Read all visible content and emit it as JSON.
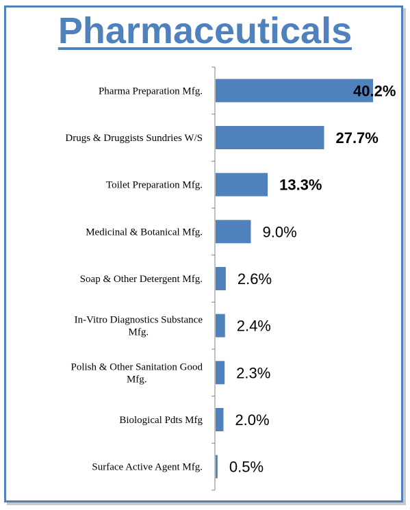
{
  "chart_data": {
    "type": "bar",
    "orientation": "horizontal",
    "title": "Pharmaceuticals",
    "categories": [
      [
        "Pharma Preparation Mfg."
      ],
      [
        "Drugs & Druggists Sundries W/S"
      ],
      [
        "Toilet Preparation Mfg."
      ],
      [
        "Medicinal & Botanical Mfg."
      ],
      [
        "Soap & Other Detergent Mfg."
      ],
      [
        "In-Vitro Diagnostics Substance",
        "Mfg."
      ],
      [
        "Polish & Other Sanitation Good",
        "Mfg."
      ],
      [
        "Biological Pdts Mfg"
      ],
      [
        "Surface Active Agent Mfg."
      ]
    ],
    "values": [
      40.2,
      27.7,
      13.3,
      9.0,
      2.6,
      2.4,
      2.3,
      2.0,
      0.5
    ],
    "value_labels": [
      "40.2%",
      "27.7%",
      "13.3%",
      "9.0%",
      "2.6%",
      "2.4%",
      "2.3%",
      "2.0%",
      "0.5%"
    ],
    "bold_labels": [
      true,
      true,
      true,
      false,
      false,
      false,
      false,
      false,
      false
    ],
    "xlim": [
      0,
      40.2
    ],
    "bar_color": "#4f81bd",
    "grid": false,
    "legend": "none"
  }
}
